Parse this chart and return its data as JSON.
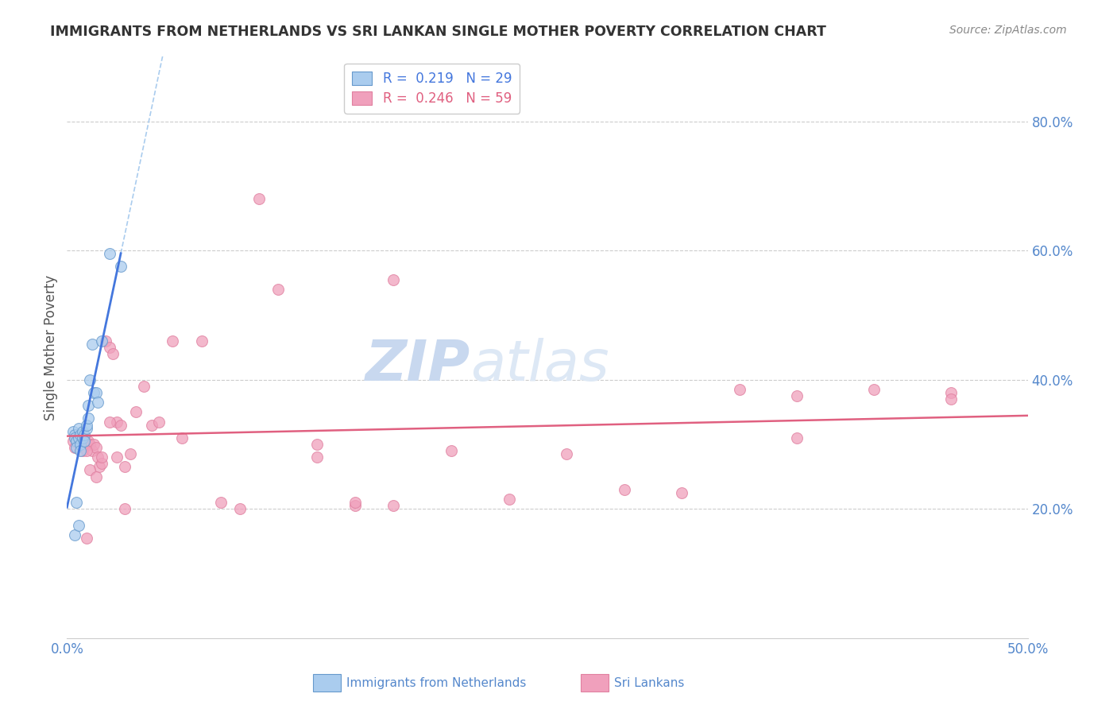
{
  "title": "IMMIGRANTS FROM NETHERLANDS VS SRI LANKAN SINGLE MOTHER POVERTY CORRELATION CHART",
  "source": "Source: ZipAtlas.com",
  "ylabel": "Single Mother Poverty",
  "xlim": [
    0.0,
    0.5
  ],
  "ylim": [
    0.0,
    0.9
  ],
  "y_ticks": [
    0.2,
    0.4,
    0.6,
    0.8
  ],
  "y_tick_labels": [
    "20.0%",
    "40.0%",
    "60.0%",
    "80.0%"
  ],
  "grid_color": "#cccccc",
  "background_color": "#ffffff",
  "blue_scatter_x": [
    0.003,
    0.004,
    0.004,
    0.005,
    0.005,
    0.006,
    0.006,
    0.007,
    0.007,
    0.007,
    0.008,
    0.008,
    0.009,
    0.009,
    0.01,
    0.01,
    0.011,
    0.011,
    0.012,
    0.013,
    0.014,
    0.015,
    0.016,
    0.018,
    0.022,
    0.028,
    0.004,
    0.005,
    0.006
  ],
  "blue_scatter_y": [
    0.32,
    0.315,
    0.31,
    0.305,
    0.295,
    0.325,
    0.31,
    0.315,
    0.3,
    0.29,
    0.32,
    0.31,
    0.315,
    0.305,
    0.325,
    0.33,
    0.34,
    0.36,
    0.4,
    0.455,
    0.38,
    0.38,
    0.365,
    0.46,
    0.595,
    0.575,
    0.16,
    0.21,
    0.175
  ],
  "pink_scatter_x": [
    0.003,
    0.004,
    0.005,
    0.006,
    0.007,
    0.008,
    0.009,
    0.01,
    0.011,
    0.012,
    0.013,
    0.014,
    0.015,
    0.016,
    0.017,
    0.018,
    0.02,
    0.022,
    0.024,
    0.026,
    0.028,
    0.03,
    0.033,
    0.036,
    0.04,
    0.044,
    0.048,
    0.055,
    0.06,
    0.07,
    0.08,
    0.09,
    0.1,
    0.11,
    0.13,
    0.15,
    0.17,
    0.2,
    0.23,
    0.26,
    0.29,
    0.32,
    0.35,
    0.38,
    0.42,
    0.46,
    0.008,
    0.01,
    0.012,
    0.015,
    0.018,
    0.022,
    0.026,
    0.03,
    0.15,
    0.13,
    0.17,
    0.46,
    0.38
  ],
  "pink_scatter_y": [
    0.305,
    0.295,
    0.315,
    0.31,
    0.3,
    0.29,
    0.31,
    0.155,
    0.305,
    0.3,
    0.29,
    0.3,
    0.295,
    0.28,
    0.265,
    0.27,
    0.46,
    0.45,
    0.44,
    0.335,
    0.33,
    0.265,
    0.285,
    0.35,
    0.39,
    0.33,
    0.335,
    0.46,
    0.31,
    0.46,
    0.21,
    0.2,
    0.68,
    0.54,
    0.3,
    0.205,
    0.205,
    0.29,
    0.215,
    0.285,
    0.23,
    0.225,
    0.385,
    0.31,
    0.385,
    0.38,
    0.31,
    0.29,
    0.26,
    0.25,
    0.28,
    0.335,
    0.28,
    0.2,
    0.21,
    0.28,
    0.555,
    0.37,
    0.375
  ],
  "blue_line_color": "#4477dd",
  "pink_line_color": "#e06080",
  "dash_line_color": "#aaccee",
  "blue_scatter_color": "#aaccee",
  "pink_scatter_color": "#f0a0bc",
  "blue_edge_color": "#6699cc",
  "pink_edge_color": "#e080a0",
  "title_color": "#333333",
  "axis_label_color": "#555555",
  "tick_color": "#5588cc",
  "watermark_color": "#dde8f5",
  "legend_text_color_blue": "#4477dd",
  "legend_text_color_pink": "#e06080",
  "source_color": "#888888"
}
